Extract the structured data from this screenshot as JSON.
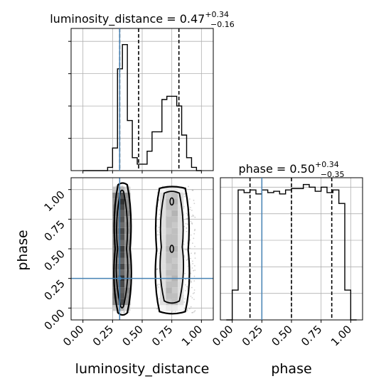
{
  "chart_data": [
    {
      "type": "histogram",
      "panel": "luminosity_distance marginal",
      "title": {
        "param": "luminosity_distance",
        "median": "0.47",
        "plus": "+0.34",
        "minus": "−0.16"
      },
      "bin_edges": [
        0.0,
        0.0417,
        0.0833,
        0.125,
        0.1667,
        0.2083,
        0.25,
        0.2917,
        0.3333,
        0.375,
        0.4167,
        0.4583,
        0.5,
        0.5417,
        0.5833,
        0.625,
        0.6667,
        0.7083,
        0.75,
        0.7917,
        0.8333,
        0.875,
        0.9167,
        0.9583,
        1.0
      ],
      "counts": [
        0,
        0,
        0,
        0,
        0,
        0.02,
        0.14,
        0.63,
        0.78,
        0.31,
        0.08,
        0.04,
        0.04,
        0.12,
        0.24,
        0.24,
        0.44,
        0.46,
        0.46,
        0.4,
        0.22,
        0.08,
        0.02,
        0
      ],
      "quantiles": [
        0.31,
        0.47,
        0.81
      ],
      "truth": 0.31,
      "xlim": [
        -0.1,
        1.1
      ],
      "grid": true
    },
    {
      "type": "histogram",
      "panel": "phase marginal",
      "title": {
        "param": "phase",
        "median": "0.50",
        "plus": "+0.34",
        "minus": "−0.35"
      },
      "bin_edges": [
        -0.05,
        0.0,
        0.05,
        0.1,
        0.15,
        0.2,
        0.25,
        0.3,
        0.35,
        0.4,
        0.45,
        0.5,
        0.55,
        0.6,
        0.65,
        0.7,
        0.75,
        0.8,
        0.85,
        0.9,
        0.95,
        1.0,
        1.05
      ],
      "counts": [
        0,
        0.22,
        0.96,
        0.94,
        0.96,
        0.93,
        0.96,
        0.94,
        0.95,
        0.93,
        0.96,
        0.97,
        0.97,
        1.0,
        0.98,
        0.95,
        0.98,
        0.94,
        0.96,
        0.86,
        0.22,
        0
      ],
      "quantiles": [
        0.15,
        0.5,
        0.84
      ],
      "truth": 0.25,
      "xlim": [
        -0.1,
        1.1
      ],
      "ylim": [
        0,
        1.05
      ],
      "y_ticks": [],
      "grid": true
    },
    {
      "type": "heatmap",
      "panel": "2D posterior luminosity_distance vs phase",
      "x_range": [
        0.2,
        0.95
      ],
      "y_range": [
        -0.05,
        1.05
      ],
      "x_bins": [
        0.275,
        0.325,
        0.375,
        0.675,
        0.725,
        0.775,
        0.825
      ],
      "y_bins": [
        0.0,
        0.05,
        0.1,
        0.15,
        0.2,
        0.25,
        0.3,
        0.35,
        0.4,
        0.45,
        0.5,
        0.55,
        0.6,
        0.65,
        0.7,
        0.75,
        0.8,
        0.85,
        0.9,
        0.95,
        1.0
      ],
      "density": [
        [
          0.25,
          0.55,
          0.6,
          0.55,
          0.55,
          0.55,
          0.5,
          0.55,
          0.5,
          0.55,
          0.55,
          0.55,
          0.5,
          0.55,
          0.55,
          0.5,
          0.55,
          0.55,
          0.5,
          0.55,
          0.25
        ],
        [
          0.35,
          0.85,
          0.8,
          0.75,
          0.85,
          0.95,
          0.7,
          0.85,
          0.7,
          0.85,
          0.9,
          0.7,
          0.8,
          0.85,
          0.7,
          0.8,
          0.75,
          0.85,
          0.95,
          0.8,
          0.35
        ],
        [
          0.2,
          0.5,
          0.5,
          0.55,
          0.45,
          0.5,
          0.5,
          0.5,
          0.45,
          0.5,
          0.5,
          0.5,
          0.45,
          0.5,
          0.5,
          0.45,
          0.55,
          0.5,
          0.5,
          0.5,
          0.2
        ],
        [
          0.05,
          0.15,
          0.15,
          0.15,
          0.15,
          0.15,
          0.15,
          0.15,
          0.15,
          0.15,
          0.15,
          0.15,
          0.15,
          0.15,
          0.15,
          0.15,
          0.15,
          0.15,
          0.15,
          0.15,
          0.05
        ],
        [
          0.1,
          0.25,
          0.3,
          0.35,
          0.3,
          0.25,
          0.3,
          0.25,
          0.3,
          0.3,
          0.35,
          0.3,
          0.3,
          0.25,
          0.3,
          0.3,
          0.25,
          0.3,
          0.3,
          0.25,
          0.1
        ],
        [
          0.1,
          0.3,
          0.3,
          0.25,
          0.3,
          0.35,
          0.3,
          0.3,
          0.25,
          0.3,
          0.35,
          0.3,
          0.3,
          0.3,
          0.25,
          0.3,
          0.35,
          0.3,
          0.35,
          0.3,
          0.1
        ],
        [
          0.05,
          0.15,
          0.15,
          0.15,
          0.15,
          0.15,
          0.15,
          0.15,
          0.15,
          0.15,
          0.15,
          0.15,
          0.15,
          0.15,
          0.15,
          0.15,
          0.15,
          0.15,
          0.15,
          0.15,
          0.05
        ]
      ],
      "truth": {
        "x": 0.31,
        "y": 0.25
      },
      "xlim": [
        -0.1,
        1.1
      ],
      "ylim": [
        -0.1,
        1.1
      ],
      "grid": true
    }
  ],
  "x_ticks": [
    "0.00",
    "0.25",
    "0.50",
    "0.75",
    "1.00"
  ],
  "y_ticks": [
    "0.00",
    "0.25",
    "0.50",
    "0.75",
    "1.00"
  ],
  "labels": {
    "x_left": "luminosity_distance",
    "x_right": "phase",
    "y_left": "phase"
  },
  "colors": {
    "truth": "#4682b4",
    "hist": "#000000",
    "grid": "#b0b0b0"
  }
}
